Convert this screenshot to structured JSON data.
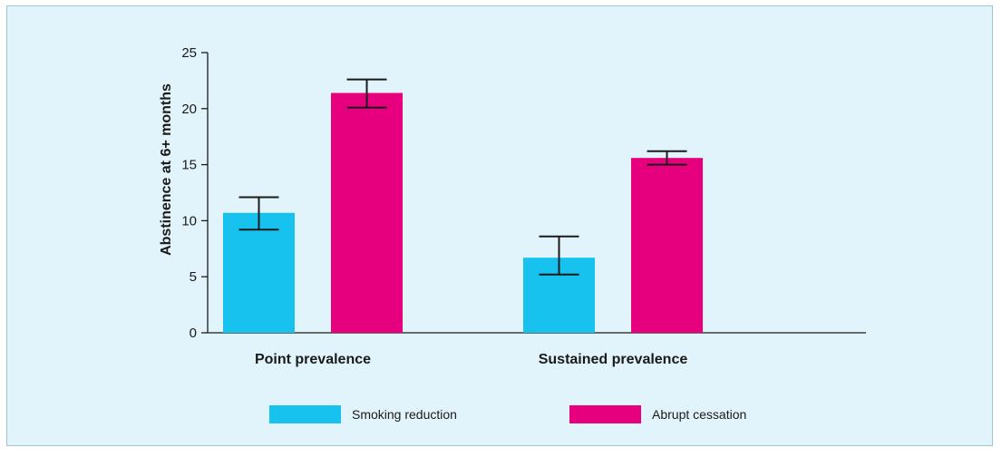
{
  "chart_data": {
    "type": "bar",
    "categories": [
      "Point prevalence",
      "Sustained prevalence"
    ],
    "series": [
      {
        "name": "Smoking reduction",
        "values": [
          10.7,
          6.7
        ],
        "error_low": [
          9.2,
          5.2
        ],
        "error_high": [
          12.1,
          8.6
        ]
      },
      {
        "name": "Abrupt cessation",
        "values": [
          21.4,
          15.6
        ],
        "error_low": [
          20.1,
          15.0
        ],
        "error_high": [
          22.6,
          16.2
        ]
      }
    ],
    "ylabel": "Abstinence at 6+ months",
    "ylim": [
      0,
      25
    ],
    "yticks": [
      0,
      5,
      10,
      15,
      20,
      25
    ],
    "grid": false,
    "legend_position": "bottom"
  },
  "colors": {
    "smoking_reduction": "#17c2ef",
    "abrupt_cessation": "#e6007e"
  }
}
